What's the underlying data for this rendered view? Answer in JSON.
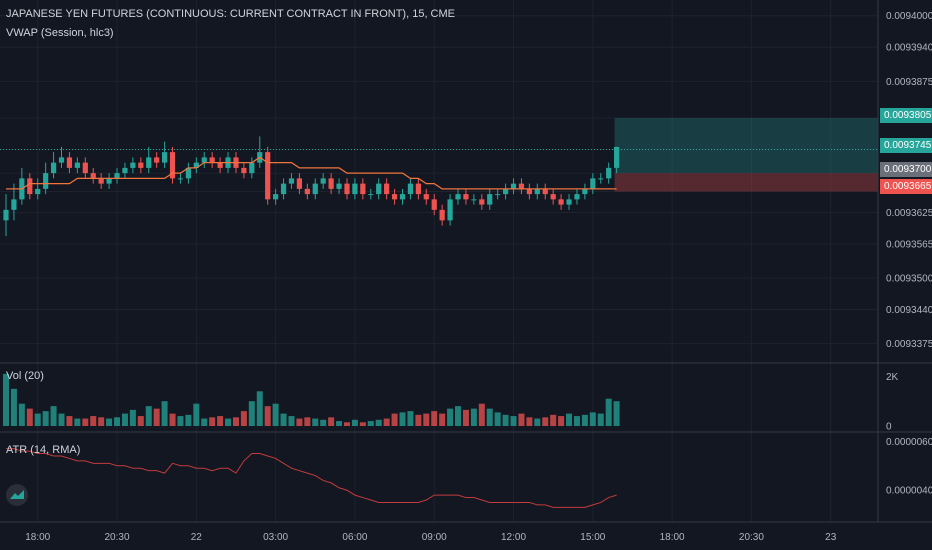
{
  "header": {
    "title": "JAPANESE YEN FUTURES (CONTINUOUS: CURRENT CONTRACT IN FRONT), 15, CME",
    "indicator": "VWAP (Session, hlc3)"
  },
  "panes": {
    "volume_label": "Vol (20)",
    "atr_label": "ATR (14, RMA)"
  },
  "price_tags": [
    {
      "label": "0.0093805",
      "color": "#26a69a",
      "kind": "target"
    },
    {
      "label": "0.0093745",
      "color": "#26a69a",
      "kind": "last"
    },
    {
      "label": "0.0093700",
      "color": "#6b6f79",
      "kind": "entry"
    },
    {
      "label": "0.0093665",
      "color": "#ef5350",
      "kind": "stop"
    }
  ],
  "colors": {
    "up": "#26a69a",
    "down": "#ef5350",
    "vwap": "#f0743e",
    "atr": "#c23b3b",
    "grid": "#1e222d"
  },
  "chart_data": [
    {
      "type": "candlestick",
      "title": "JAPANESE YEN FUTURES (CONTINUOUS: CURRENT CONTRACT IN FRONT), 15, CME",
      "ylim": [
        0.009334,
        0.009403
      ],
      "y_ticks": [
        "0.0094000",
        "0.0093940",
        "0.0093875",
        "0.0093805",
        "0.0093745",
        "0.0093700",
        "0.0093665",
        "0.0093625",
        "0.0093565",
        "0.0093500",
        "0.0093440",
        "0.0093375"
      ],
      "y_tick_values": [
        0.0094,
        0.009394,
        0.0093875,
        0.0093805,
        0.0093745,
        0.00937,
        0.0093665,
        0.0093625,
        0.0093565,
        0.00935,
        0.009344,
        0.0093375
      ],
      "x_ticks": [
        "18:00",
        "20:30",
        "22",
        "03:00",
        "06:00",
        "09:00",
        "12:00",
        "15:00",
        "18:00",
        "20:30",
        "23"
      ],
      "x_tick_index": [
        4,
        14,
        24,
        34,
        44,
        54,
        64,
        74,
        84,
        94,
        104
      ],
      "grid": true,
      "close": [
        0.009363,
        0.009365,
        0.009369,
        0.009366,
        0.009367,
        0.00937,
        0.009372,
        0.009373,
        0.009371,
        0.009372,
        0.00937,
        0.009369,
        0.009368,
        0.009369,
        0.00937,
        0.009371,
        0.009372,
        0.009371,
        0.009373,
        0.009372,
        0.009374,
        0.009369,
        0.009369,
        0.009371,
        0.009372,
        0.009373,
        0.009372,
        0.009371,
        0.009373,
        0.009371,
        0.00937,
        0.009372,
        0.009374,
        0.009365,
        0.009366,
        0.009368,
        0.009369,
        0.009367,
        0.009366,
        0.009368,
        0.009369,
        0.009367,
        0.009368,
        0.009366,
        0.009368,
        0.009366,
        0.009366,
        0.009368,
        0.009366,
        0.009365,
        0.009366,
        0.009368,
        0.009366,
        0.009365,
        0.009363,
        0.009361,
        0.009365,
        0.009366,
        0.009365,
        0.009365,
        0.009364,
        0.009366,
        0.009366,
        0.009367,
        0.009368,
        0.009367,
        0.009366,
        0.009367,
        0.009366,
        0.009365,
        0.009364,
        0.009365,
        0.009366,
        0.009367,
        0.009369,
        0.009369,
        0.009371,
        0.009375
      ],
      "open": [
        0.009361,
        0.009363,
        0.009365,
        0.009369,
        0.009366,
        0.009367,
        0.00937,
        0.009372,
        0.009373,
        0.009371,
        0.009372,
        0.00937,
        0.009369,
        0.009368,
        0.009369,
        0.00937,
        0.009371,
        0.009372,
        0.009371,
        0.009373,
        0.009372,
        0.009374,
        0.009369,
        0.009369,
        0.009371,
        0.009372,
        0.009373,
        0.009372,
        0.009371,
        0.009373,
        0.009371,
        0.00937,
        0.009372,
        0.009374,
        0.009365,
        0.009366,
        0.009368,
        0.009369,
        0.009367,
        0.009366,
        0.009368,
        0.009369,
        0.009367,
        0.009368,
        0.009366,
        0.009368,
        0.009366,
        0.009366,
        0.009368,
        0.009366,
        0.009365,
        0.009366,
        0.009368,
        0.009366,
        0.009365,
        0.009363,
        0.009361,
        0.009365,
        0.009366,
        0.009365,
        0.009365,
        0.009364,
        0.009366,
        0.009366,
        0.009367,
        0.009368,
        0.009367,
        0.009366,
        0.009367,
        0.009366,
        0.009365,
        0.009364,
        0.009365,
        0.009366,
        0.009367,
        0.009369,
        0.009369,
        0.009371
      ],
      "high": [
        0.009366,
        0.009368,
        0.009371,
        0.00937,
        0.009369,
        0.009372,
        0.009374,
        0.009375,
        0.009374,
        0.009373,
        0.009373,
        0.009371,
        0.00937,
        0.00937,
        0.009371,
        0.009372,
        0.009373,
        0.009373,
        0.009375,
        0.009374,
        0.009376,
        0.009375,
        0.00937,
        0.009372,
        0.009373,
        0.009374,
        0.009374,
        0.009373,
        0.009374,
        0.009374,
        0.009372,
        0.009373,
        0.009377,
        0.009375,
        0.009367,
        0.009369,
        0.00937,
        0.00937,
        0.009368,
        0.009369,
        0.00937,
        0.00937,
        0.009369,
        0.009369,
        0.009369,
        0.009369,
        0.009367,
        0.009369,
        0.009369,
        0.009367,
        0.009367,
        0.009369,
        0.009369,
        0.009367,
        0.009366,
        0.009364,
        0.009366,
        0.009367,
        0.009367,
        0.009366,
        0.009366,
        0.009367,
        0.009367,
        0.009368,
        0.009369,
        0.009369,
        0.009368,
        0.009368,
        0.009368,
        0.009367,
        0.009366,
        0.009366,
        0.009367,
        0.009368,
        0.00937,
        0.00937,
        0.009372,
        0.009375
      ],
      "low": [
        0.009358,
        0.009361,
        0.009364,
        0.009365,
        0.009365,
        0.009366,
        0.009369,
        0.009371,
        0.00937,
        0.00937,
        0.009369,
        0.009368,
        0.009367,
        0.009367,
        0.009368,
        0.009369,
        0.00937,
        0.00937,
        0.00937,
        0.009371,
        0.009371,
        0.009368,
        0.009368,
        0.009368,
        0.00937,
        0.009371,
        0.009371,
        0.00937,
        0.00937,
        0.00937,
        0.009369,
        0.009369,
        0.009371,
        0.009364,
        0.009364,
        0.009365,
        0.009367,
        0.009366,
        0.009365,
        0.009365,
        0.009367,
        0.009366,
        0.009366,
        0.009365,
        0.009365,
        0.009365,
        0.009365,
        0.009365,
        0.009365,
        0.009364,
        0.009364,
        0.009365,
        0.009365,
        0.009364,
        0.009362,
        0.00936,
        0.00936,
        0.009364,
        0.009364,
        0.009364,
        0.009363,
        0.009363,
        0.009365,
        0.009365,
        0.009366,
        0.009366,
        0.009365,
        0.009365,
        0.009365,
        0.009364,
        0.009363,
        0.009363,
        0.009364,
        0.009365,
        0.009366,
        0.009368,
        0.009368,
        0.00937
      ],
      "vwap": [
        0.009367,
        0.009367,
        0.009367,
        0.009368,
        0.009368,
        0.009368,
        0.009368,
        0.009368,
        0.009368,
        0.009369,
        0.009369,
        0.009369,
        0.009369,
        0.009369,
        0.009369,
        0.009369,
        0.009369,
        0.009369,
        0.009369,
        0.009369,
        0.009369,
        0.00937,
        0.00937,
        0.009371,
        0.009371,
        0.009372,
        0.009372,
        0.009372,
        0.009372,
        0.009372,
        0.009372,
        0.009372,
        0.009373,
        0.009372,
        0.009372,
        0.009372,
        0.009372,
        0.009371,
        0.009371,
        0.009371,
        0.009371,
        0.009371,
        0.009371,
        0.00937,
        0.00937,
        0.00937,
        0.00937,
        0.00937,
        0.00937,
        0.00937,
        0.00937,
        0.009369,
        0.009369,
        0.009368,
        0.009368,
        0.009367,
        0.009367,
        0.009367,
        0.009367,
        0.009367,
        0.009367,
        0.009367,
        0.009367,
        0.009367,
        0.009367,
        0.009367,
        0.009367,
        0.009367,
        0.009367,
        0.009367,
        0.009367,
        0.009367,
        0.009367,
        0.009367,
        0.009367,
        0.009367,
        0.009367,
        0.009367
      ]
    },
    {
      "type": "bar",
      "title": "Vol (20)",
      "y_ticks": [
        "2K",
        "0"
      ],
      "y_tick_values": [
        2000,
        0
      ],
      "ylim": [
        0,
        2500
      ],
      "values": [
        2100,
        1500,
        900,
        700,
        500,
        600,
        800,
        500,
        400,
        300,
        300,
        400,
        350,
        300,
        350,
        500,
        650,
        400,
        800,
        700,
        1000,
        500,
        400,
        450,
        900,
        300,
        350,
        400,
        300,
        350,
        600,
        1000,
        1400,
        800,
        900,
        500,
        400,
        300,
        350,
        300,
        250,
        350,
        200,
        150,
        250,
        150,
        200,
        250,
        300,
        500,
        550,
        600,
        450,
        500,
        600,
        500,
        700,
        800,
        650,
        700,
        900,
        700,
        550,
        450,
        400,
        500,
        350,
        300,
        350,
        450,
        400,
        500,
        400,
        450,
        550,
        500,
        1100,
        1000
      ]
    },
    {
      "type": "line",
      "title": "ATR (14, RMA)",
      "y_ticks": [
        "0.0000060",
        "0.0000040"
      ],
      "y_tick_values": [
        6e-06,
        4e-06
      ],
      "ylim": [
        2.7e-06,
        6.3e-06
      ],
      "values": [
        5.7e-06,
        5.7e-06,
        5.6e-06,
        5.6e-06,
        5.5e-06,
        5.5e-06,
        5.4e-06,
        5.4e-06,
        5.3e-06,
        5.2e-06,
        5.2e-06,
        5.1e-06,
        5.1e-06,
        5.1e-06,
        5e-06,
        5e-06,
        4.9e-06,
        4.9e-06,
        4.8e-06,
        4.8e-06,
        4.7e-06,
        5.1e-06,
        5e-06,
        5e-06,
        4.9e-06,
        4.9e-06,
        4.8e-06,
        4.9e-06,
        4.9e-06,
        4.7e-06,
        5.2e-06,
        5.5e-06,
        5.5e-06,
        5.4e-06,
        5.3e-06,
        5.1e-06,
        4.9e-06,
        4.8e-06,
        4.7e-06,
        4.6e-06,
        4.4e-06,
        4.3e-06,
        4.1e-06,
        4e-06,
        3.8e-06,
        3.7e-06,
        3.6e-06,
        3.5e-06,
        3.5e-06,
        3.5e-06,
        3.5e-06,
        3.5e-06,
        3.5e-06,
        3.6e-06,
        3.8e-06,
        3.8e-06,
        3.8e-06,
        3.8e-06,
        3.7e-06,
        3.7e-06,
        3.6e-06,
        3.5e-06,
        3.5e-06,
        3.5e-06,
        3.5e-06,
        3.5e-06,
        3.5e-06,
        3.4e-06,
        3.4e-06,
        3.3e-06,
        3.3e-06,
        3.3e-06,
        3.3e-06,
        3.3e-06,
        3.4e-06,
        3.5e-06,
        3.7e-06,
        3.8e-06
      ]
    }
  ]
}
